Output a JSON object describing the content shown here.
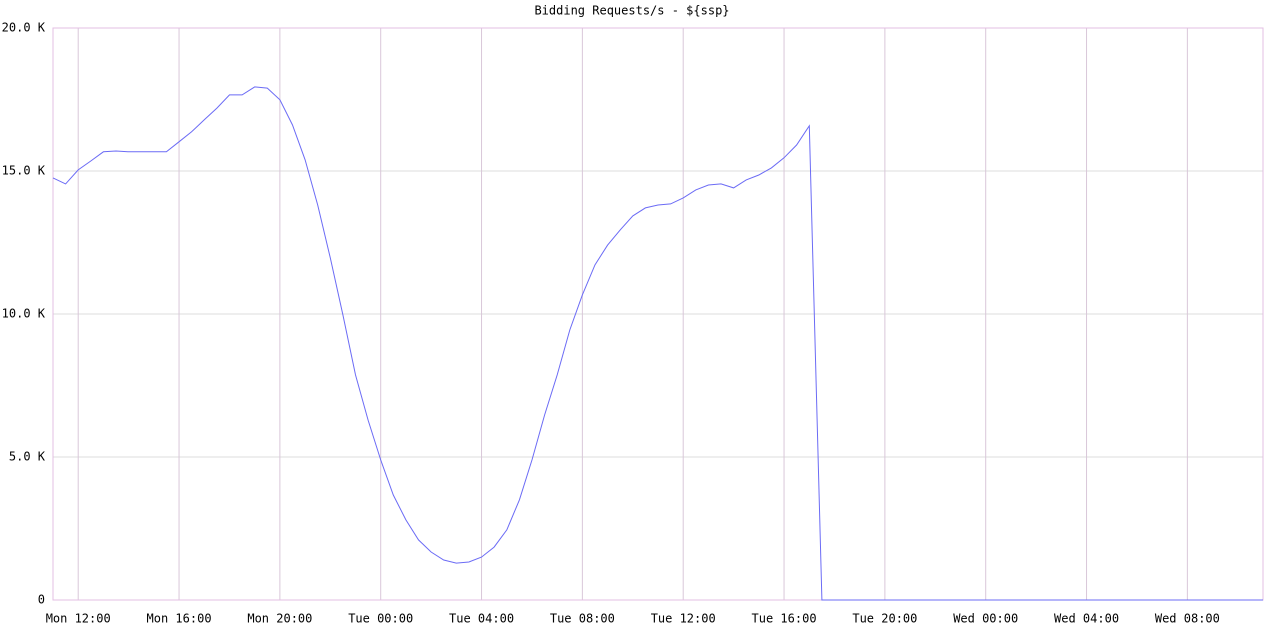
{
  "chart_data": {
    "type": "line",
    "title": "Bidding Requests/s - ${ssp}",
    "x": [
      "Mon 11:00",
      "Mon 11:30",
      "Mon 12:00",
      "Mon 12:30",
      "Mon 13:00",
      "Mon 13:30",
      "Mon 14:00",
      "Mon 14:30",
      "Mon 15:00",
      "Mon 15:30",
      "Mon 16:00",
      "Mon 16:30",
      "Mon 17:00",
      "Mon 17:30",
      "Mon 18:00",
      "Mon 18:30",
      "Mon 19:00",
      "Mon 19:30",
      "Mon 20:00",
      "Mon 20:30",
      "Mon 21:00",
      "Mon 21:30",
      "Mon 22:00",
      "Mon 22:30",
      "Mon 23:00",
      "Mon 23:30",
      "Tue 00:00",
      "Tue 00:30",
      "Tue 01:00",
      "Tue 01:30",
      "Tue 02:00",
      "Tue 02:30",
      "Tue 03:00",
      "Tue 03:30",
      "Tue 04:00",
      "Tue 04:30",
      "Tue 05:00",
      "Tue 05:30",
      "Tue 06:00",
      "Tue 06:30",
      "Tue 07:00",
      "Tue 07:30",
      "Tue 08:00",
      "Tue 08:30",
      "Tue 09:00",
      "Tue 09:30",
      "Tue 10:00",
      "Tue 10:30",
      "Tue 11:00",
      "Tue 11:30",
      "Tue 12:00",
      "Tue 12:30",
      "Tue 13:00",
      "Tue 13:30",
      "Tue 14:00",
      "Tue 14:30",
      "Tue 15:00",
      "Tue 15:30",
      "Tue 16:00",
      "Tue 16:30",
      "Tue 17:00",
      "Tue 17:30",
      "Tue 18:00",
      "Tue 18:30",
      "Tue 19:00",
      "Tue 19:30",
      "Tue 20:00",
      "Tue 20:30",
      "Tue 21:00",
      "Tue 21:30",
      "Tue 22:00",
      "Tue 22:30",
      "Tue 23:00",
      "Tue 23:30",
      "Wed 00:00",
      "Wed 00:30",
      "Wed 01:00",
      "Wed 01:30",
      "Wed 02:00",
      "Wed 02:30",
      "Wed 03:00",
      "Wed 03:30",
      "Wed 04:00",
      "Wed 04:30",
      "Wed 05:00",
      "Wed 05:30",
      "Wed 06:00",
      "Wed 06:30",
      "Wed 07:00",
      "Wed 07:30",
      "Wed 08:00",
      "Wed 08:30",
      "Wed 09:00",
      "Wed 09:30",
      "Wed 10:00",
      "Wed 10:30",
      "Wed 11:00"
    ],
    "series": [
      {
        "color": "#6b6bf5",
        "values": [
          14760,
          14550,
          15040,
          15350,
          15670,
          15700,
          15670,
          15670,
          15670,
          15670,
          16020,
          16370,
          16790,
          17200,
          17660,
          17660,
          17940,
          17900,
          17490,
          16610,
          15390,
          13810,
          11960,
          9970,
          7870,
          6290,
          4900,
          3670,
          2800,
          2100,
          1680,
          1400,
          1290,
          1330,
          1500,
          1850,
          2450,
          3500,
          4900,
          6470,
          7870,
          9440,
          10670,
          11720,
          12410,
          12940,
          13430,
          13710,
          13810,
          13850,
          14060,
          14340,
          14510,
          14550,
          14410,
          14690,
          14860,
          15110,
          15460,
          15910,
          16580,
          0,
          0,
          0,
          0,
          0,
          0,
          0,
          0,
          0,
          0,
          0,
          0,
          0,
          0,
          0,
          0,
          0,
          0,
          0,
          0,
          0,
          0,
          0,
          0,
          0,
          0,
          0,
          0,
          0,
          0,
          0,
          0,
          0,
          0,
          0,
          0
        ]
      }
    ],
    "xticks": [
      "Mon 12:00",
      "Mon 16:00",
      "Mon 20:00",
      "Tue 00:00",
      "Tue 04:00",
      "Tue 08:00",
      "Tue 12:00",
      "Tue 16:00",
      "Tue 20:00",
      "Wed 00:00",
      "Wed 04:00",
      "Wed 08:00"
    ],
    "ylim": [
      0,
      20000
    ],
    "yticks": [
      0,
      {
        "value": 5000,
        "label": "5.0 K"
      },
      {
        "value": 10000,
        "label": "10.0 K"
      },
      {
        "value": 15000,
        "label": "15.0 K"
      },
      {
        "value": 20000,
        "label": "20.0 K"
      }
    ],
    "grid": true
  }
}
